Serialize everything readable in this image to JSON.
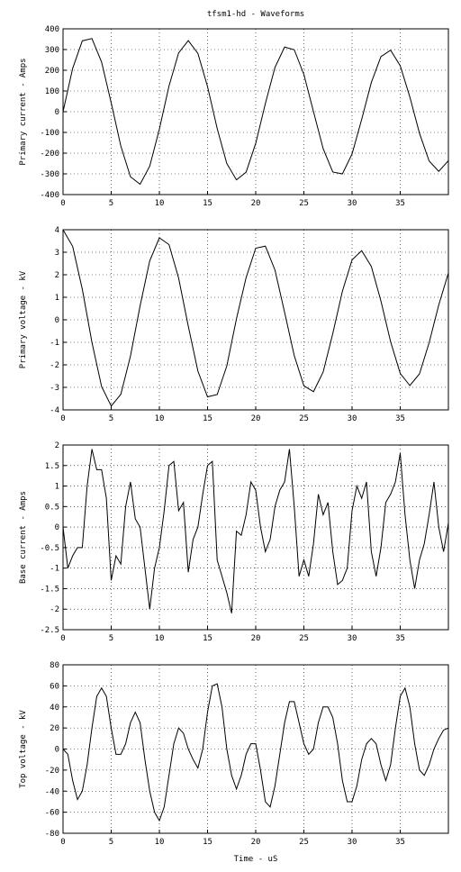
{
  "chart_data": [
    {
      "type": "line",
      "title": "tfsm1-hd - Waveforms",
      "ylabel": "Primary current - Amps",
      "x": [
        0,
        1,
        2,
        3,
        4,
        5,
        6,
        7,
        8,
        9,
        10,
        11,
        12,
        13,
        14,
        15,
        16,
        17,
        18,
        19,
        20,
        21,
        22,
        23,
        24,
        25,
        26,
        27,
        28,
        29,
        30,
        31,
        32,
        33,
        34,
        35,
        36,
        37,
        38,
        39,
        40
      ],
      "values": [
        0,
        209,
        342,
        353,
        240,
        43,
        -166,
        -314,
        -350,
        -263,
        -84,
        124,
        284,
        343,
        281,
        121,
        -81,
        -250,
        -329,
        -292,
        -153,
        39,
        214,
        312,
        299,
        180,
        0,
        -178,
        -291,
        -300,
        -204,
        -37,
        141,
        266,
        297,
        222,
        71,
        -104,
        -238,
        -288,
        -236
      ],
      "color": "#000000",
      "xlim": [
        0,
        40
      ],
      "xticks": [
        0,
        5,
        10,
        15,
        20,
        25,
        30,
        35
      ],
      "ylim": [
        -400,
        400
      ],
      "yticks": [
        -400,
        -300,
        -200,
        -100,
        0,
        100,
        200,
        300,
        400
      ],
      "grid": true
    },
    {
      "type": "line",
      "ylabel": "Primary voltage - kV",
      "x": [
        0,
        1,
        2,
        3,
        4,
        5,
        6,
        7,
        8,
        9,
        10,
        11,
        12,
        13,
        14,
        15,
        16,
        17,
        18,
        19,
        20,
        21,
        22,
        23,
        24,
        25,
        26,
        27,
        28,
        29,
        30,
        31,
        32,
        33,
        34,
        35,
        36,
        37,
        38,
        39,
        40
      ],
      "values": [
        4.0,
        3.26,
        1.36,
        -1.0,
        -2.96,
        -3.83,
        -3.31,
        -1.61,
        0.62,
        2.62,
        3.64,
        3.34,
        1.85,
        -0.28,
        -2.28,
        -3.42,
        -3.32,
        -2.05,
        0.04,
        1.87,
        3.18,
        3.27,
        2.21,
        0.33,
        -1.59,
        -2.93,
        -3.19,
        -2.32,
        -0.61,
        1.27,
        2.66,
        3.07,
        2.37,
        0.83,
        -0.97,
        -2.38,
        -2.92,
        -2.4,
        -1.02,
        0.66,
        2.08
      ],
      "color": "#000000",
      "xlim": [
        0,
        40
      ],
      "xticks": [
        0,
        5,
        10,
        15,
        20,
        25,
        30,
        35
      ],
      "ylim": [
        -4,
        4
      ],
      "yticks": [
        -4,
        -3,
        -2,
        -1,
        0,
        1,
        2,
        3,
        4
      ],
      "grid": true
    },
    {
      "type": "line",
      "ylabel": "Base current - Amps",
      "x": [
        0,
        0.5,
        1,
        1.5,
        2,
        2.5,
        3,
        3.5,
        4,
        4.5,
        5,
        5.5,
        6,
        6.5,
        7,
        7.5,
        8,
        8.5,
        9,
        9.5,
        10,
        10.5,
        11,
        11.5,
        12,
        12.5,
        13,
        13.5,
        14,
        14.5,
        15,
        15.5,
        16,
        16.5,
        17,
        17.5,
        18,
        18.5,
        19,
        19.5,
        20,
        20.5,
        21,
        21.5,
        22,
        22.5,
        23,
        23.5,
        24,
        24.5,
        25,
        25.5,
        26,
        26.5,
        27,
        27.5,
        28,
        28.5,
        29,
        29.5,
        30,
        30.5,
        31,
        31.5,
        32,
        32.5,
        33,
        33.5,
        34,
        34.5,
        35,
        35.5,
        36,
        36.5,
        37,
        37.5,
        38,
        38.5,
        39,
        39.5,
        40
      ],
      "values": [
        0,
        -1.0,
        -0.7,
        -0.5,
        -0.5,
        1.0,
        1.9,
        1.4,
        1.4,
        0.7,
        -1.3,
        -0.7,
        -0.9,
        0.5,
        1.1,
        0.2,
        0.0,
        -1.0,
        -2.0,
        -1.0,
        -0.5,
        0.4,
        1.5,
        1.6,
        0.4,
        0.6,
        -1.1,
        -0.3,
        0.0,
        0.8,
        1.5,
        1.6,
        -0.8,
        -1.2,
        -1.6,
        -2.1,
        -0.1,
        -0.2,
        0.3,
        1.1,
        0.9,
        0.0,
        -0.6,
        -0.3,
        0.5,
        0.9,
        1.1,
        1.9,
        0.5,
        -1.2,
        -0.8,
        -1.2,
        -0.4,
        0.8,
        0.3,
        0.6,
        -0.6,
        -1.4,
        -1.3,
        -1.0,
        0.4,
        1.0,
        0.7,
        1.1,
        -0.6,
        -1.2,
        -0.5,
        0.6,
        0.8,
        1.1,
        1.8,
        0.3,
        -0.8,
        -1.5,
        -0.8,
        -0.4,
        0.3,
        1.1,
        0.0,
        -0.6,
        0.1
      ],
      "color": "#000000",
      "xlim": [
        0,
        40
      ],
      "xticks": [
        0,
        5,
        10,
        15,
        20,
        25,
        30,
        35
      ],
      "ylim": [
        -2.5,
        2
      ],
      "yticks": [
        -2.5,
        -2,
        -1.5,
        -1,
        -0.5,
        0,
        0.5,
        1,
        1.5,
        2
      ],
      "grid": true
    },
    {
      "type": "line",
      "ylabel": "Top voltage - kV",
      "xlabel": "Time - uS",
      "x": [
        0,
        0.5,
        1,
        1.5,
        2,
        2.5,
        3,
        3.5,
        4,
        4.5,
        5,
        5.5,
        6,
        6.5,
        7,
        7.5,
        8,
        8.5,
        9,
        9.5,
        10,
        10.5,
        11,
        11.5,
        12,
        12.5,
        13,
        13.5,
        14,
        14.5,
        15,
        15.5,
        16,
        16.5,
        17,
        17.5,
        18,
        18.5,
        19,
        19.5,
        20,
        20.5,
        21,
        21.5,
        22,
        22.5,
        23,
        23.5,
        24,
        24.5,
        25,
        25.5,
        26,
        26.5,
        27,
        27.5,
        28,
        28.5,
        29,
        29.5,
        30,
        30.5,
        31,
        31.5,
        32,
        32.5,
        33,
        33.5,
        34,
        34.5,
        35,
        35.5,
        36,
        36.5,
        37,
        37.5,
        38,
        38.5,
        39,
        39.5,
        40
      ],
      "values": [
        0,
        -5,
        -30,
        -48,
        -40,
        -15,
        20,
        50,
        58,
        50,
        20,
        -5,
        -5,
        5,
        25,
        35,
        25,
        -10,
        -40,
        -60,
        -68,
        -55,
        -25,
        5,
        20,
        15,
        0,
        -10,
        -18,
        0,
        35,
        60,
        62,
        40,
        0,
        -25,
        -38,
        -25,
        -5,
        5,
        5,
        -20,
        -50,
        -55,
        -35,
        -5,
        25,
        45,
        45,
        25,
        5,
        -5,
        0,
        25,
        40,
        40,
        30,
        5,
        -30,
        -50,
        -50,
        -35,
        -10,
        5,
        10,
        5,
        -15,
        -30,
        -15,
        20,
        50,
        58,
        40,
        5,
        -20,
        -25,
        -15,
        0,
        10,
        18,
        20
      ],
      "color": "#000000",
      "xlim": [
        0,
        40
      ],
      "xticks": [
        0,
        5,
        10,
        15,
        20,
        25,
        30,
        35
      ],
      "ylim": [
        -80,
        80
      ],
      "yticks": [
        -80,
        -60,
        -40,
        -20,
        0,
        20,
        40,
        60,
        80
      ],
      "grid": true
    }
  ]
}
